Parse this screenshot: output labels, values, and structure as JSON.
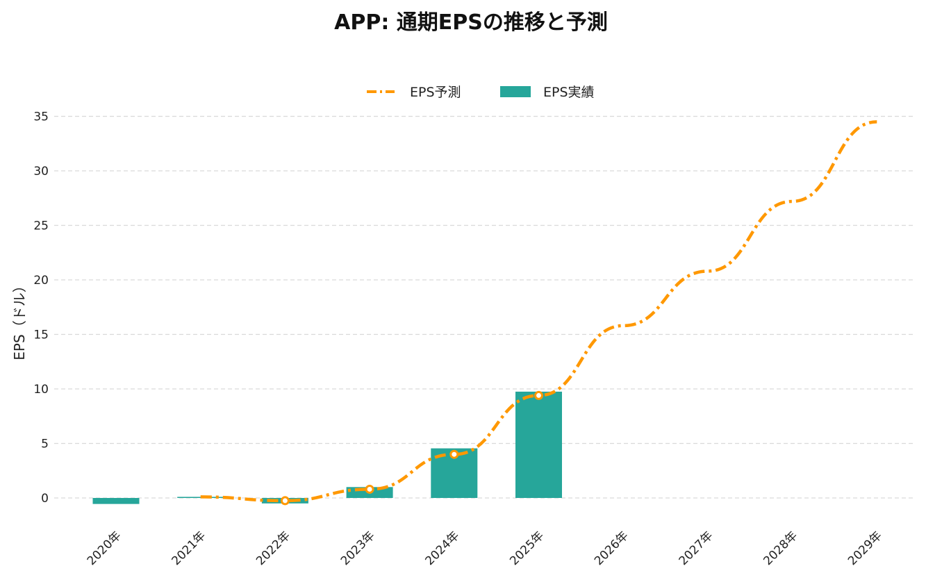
{
  "chart_data": {
    "type": "bar",
    "title": "APP: 通期EPSの推移と予測",
    "xlabel": "",
    "ylabel": "EPS（ドル）",
    "categories": [
      "2020年",
      "2021年",
      "2022年",
      "2023年",
      "2024年",
      "2025年",
      "2026年",
      "2027年",
      "2028年",
      "2029年"
    ],
    "ylim": [
      -2.5,
      36
    ],
    "yticks": [
      0,
      5,
      10,
      15,
      20,
      25,
      30,
      35
    ],
    "grid": true,
    "legend_position": "top-center",
    "series": [
      {
        "name": "EPS実績",
        "type": "bar",
        "color": "#26a69a",
        "values": [
          -0.55,
          0.1,
          -0.5,
          1.0,
          4.55,
          9.75,
          null,
          null,
          null,
          null
        ]
      },
      {
        "name": "EPS予測",
        "type": "line",
        "style": "dash-dot",
        "color": "#ff9800",
        "values": [
          null,
          0.1,
          -0.25,
          0.8,
          4.0,
          9.4,
          15.8,
          20.8,
          27.2,
          34.5
        ],
        "markers": [
          false,
          false,
          true,
          true,
          true,
          true,
          false,
          false,
          false,
          false
        ]
      }
    ]
  }
}
